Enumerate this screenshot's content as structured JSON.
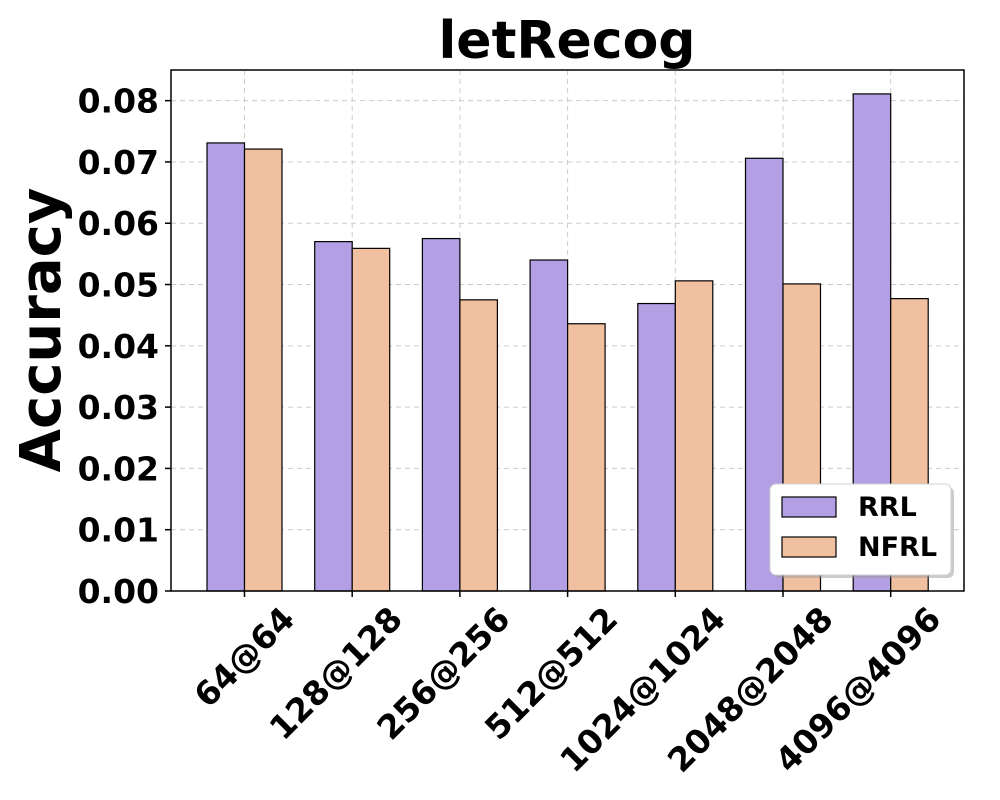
{
  "chart_data": {
    "type": "bar",
    "title": "letRecog",
    "xlabel": "",
    "ylabel": "Accuracy",
    "categories": [
      "64@64",
      "128@128",
      "256@256",
      "512@512",
      "1024@1024",
      "2048@2048",
      "4096@4096"
    ],
    "series": [
      {
        "name": "RRL",
        "color": "#b39fe3",
        "values": [
          0.0731,
          0.057,
          0.0575,
          0.054,
          0.0469,
          0.0706,
          0.0811
        ]
      },
      {
        "name": "NFRL",
        "color": "#f0c0a0",
        "values": [
          0.0721,
          0.0559,
          0.0475,
          0.0436,
          0.0506,
          0.0501,
          0.0477
        ]
      }
    ],
    "yticks": [
      "0.00",
      "0.01",
      "0.02",
      "0.03",
      "0.04",
      "0.05",
      "0.06",
      "0.07",
      "0.08"
    ],
    "ylim": [
      0,
      0.085
    ],
    "grid": true,
    "legend_position": "bottom-right",
    "xtick_rotation": 45
  }
}
